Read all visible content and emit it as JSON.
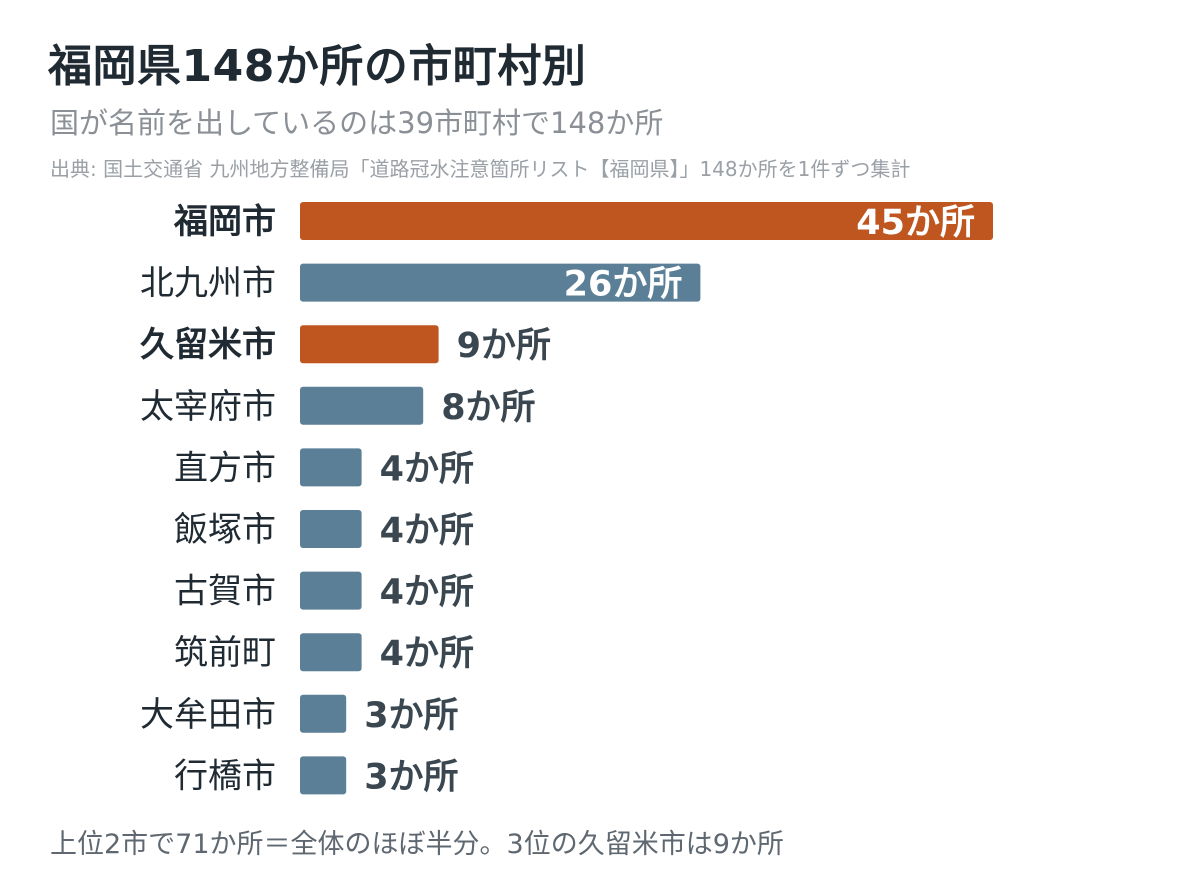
{
  "header": {
    "title": "福岡県148か所の市町村別",
    "subtitle": "国が名前を出しているのは39市町村で148か所",
    "source": "出典: 国土交通省 九州地方整備局「道路冠水注意箇所リスト【福岡県】」148か所を1件ずつ集計"
  },
  "footer": {
    "note": "上位2市で71か所＝全体のほぼ半分。3位の久留米市は9か所"
  },
  "colors": {
    "highlight": "#c0561f",
    "default": "#5b7f96",
    "label_dark": "#1f2a33",
    "value_text": "#3a4750"
  },
  "chart_data": {
    "type": "bar",
    "orientation": "horizontal",
    "title": "福岡県148か所の市町村別",
    "subtitle": "国が名前を出しているのは39市町村で148か所",
    "categories": [
      "福岡市",
      "北九州市",
      "久留米市",
      "太宰府市",
      "直方市",
      "飯塚市",
      "古賀市",
      "筑前町",
      "大牟田市",
      "行橋市"
    ],
    "values": [
      45,
      26,
      9,
      8,
      4,
      4,
      4,
      4,
      3,
      3
    ],
    "value_labels": [
      "45か所",
      "26か所",
      "9か所",
      "8か所",
      "4か所",
      "4か所",
      "4か所",
      "4か所",
      "3か所",
      "3か所"
    ],
    "highlighted": [
      true,
      false,
      true,
      false,
      false,
      false,
      false,
      false,
      false,
      false
    ],
    "xlim": [
      0,
      45
    ],
    "grid": false,
    "legend": "none"
  }
}
